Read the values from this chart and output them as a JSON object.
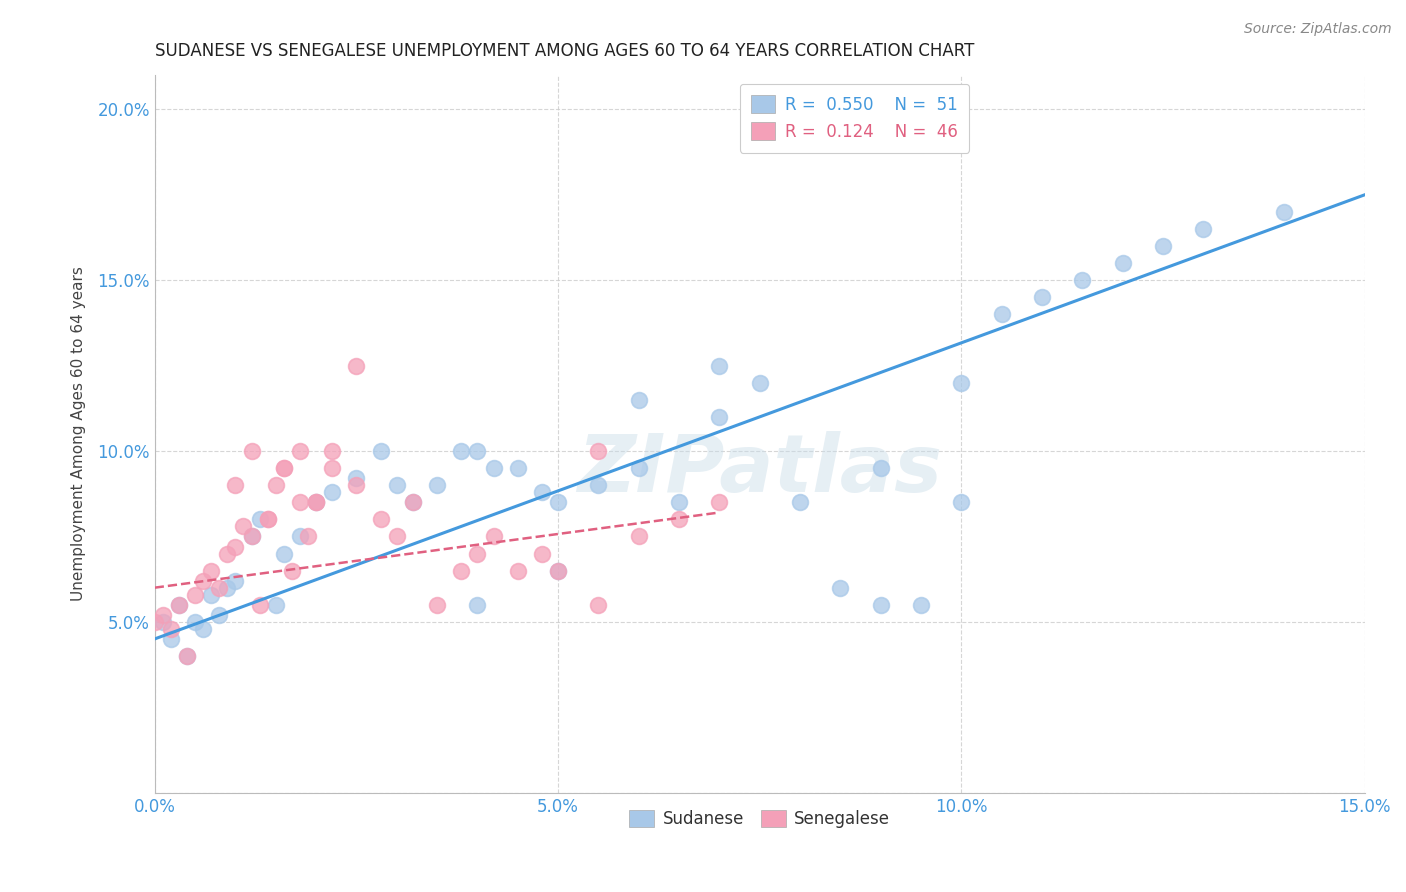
{
  "title": "SUDANESE VS SENEGALESE UNEMPLOYMENT AMONG AGES 60 TO 64 YEARS CORRELATION CHART",
  "source": "Source: ZipAtlas.com",
  "ylabel": "Unemployment Among Ages 60 to 64 years",
  "xlim": [
    0,
    0.15
  ],
  "ylim": [
    0,
    0.21
  ],
  "xticks": [
    0.0,
    0.05,
    0.1,
    0.15
  ],
  "xtick_labels": [
    "0.0%",
    "5.0%",
    "10.0%",
    "15.0%"
  ],
  "yticks": [
    0.0,
    0.05,
    0.1,
    0.15,
    0.2
  ],
  "ytick_labels": [
    "",
    "5.0%",
    "10.0%",
    "15.0%",
    "20.0%"
  ],
  "blue_color": "#a8c8e8",
  "pink_color": "#f4a0b8",
  "blue_line_color": "#4499dd",
  "pink_line_color": "#e06080",
  "axis_label_color": "#4499dd",
  "watermark": "ZIPatlas",
  "sudanese_x": [
    0.001,
    0.002,
    0.003,
    0.004,
    0.005,
    0.006,
    0.007,
    0.008,
    0.009,
    0.01,
    0.012,
    0.013,
    0.015,
    0.016,
    0.018,
    0.02,
    0.022,
    0.025,
    0.028,
    0.03,
    0.032,
    0.035,
    0.038,
    0.04,
    0.042,
    0.045,
    0.048,
    0.05,
    0.055,
    0.06,
    0.065,
    0.07,
    0.075,
    0.09,
    0.1,
    0.105,
    0.11,
    0.115,
    0.12,
    0.125,
    0.13,
    0.14,
    0.04,
    0.05,
    0.06,
    0.07,
    0.08,
    0.085,
    0.09,
    0.095,
    0.1
  ],
  "sudanese_y": [
    0.05,
    0.045,
    0.055,
    0.04,
    0.05,
    0.048,
    0.058,
    0.052,
    0.06,
    0.062,
    0.075,
    0.08,
    0.055,
    0.07,
    0.075,
    0.085,
    0.088,
    0.092,
    0.1,
    0.09,
    0.085,
    0.09,
    0.1,
    0.1,
    0.095,
    0.095,
    0.088,
    0.085,
    0.09,
    0.115,
    0.085,
    0.125,
    0.12,
    0.095,
    0.12,
    0.14,
    0.145,
    0.15,
    0.155,
    0.16,
    0.165,
    0.17,
    0.055,
    0.065,
    0.095,
    0.11,
    0.085,
    0.06,
    0.055,
    0.055,
    0.085
  ],
  "senegalese_x": [
    0.0,
    0.001,
    0.002,
    0.003,
    0.004,
    0.005,
    0.006,
    0.007,
    0.008,
    0.009,
    0.01,
    0.011,
    0.012,
    0.013,
    0.014,
    0.015,
    0.016,
    0.017,
    0.018,
    0.019,
    0.02,
    0.022,
    0.025,
    0.01,
    0.012,
    0.014,
    0.016,
    0.018,
    0.02,
    0.022,
    0.025,
    0.028,
    0.03,
    0.032,
    0.035,
    0.038,
    0.04,
    0.042,
    0.045,
    0.048,
    0.05,
    0.055,
    0.055,
    0.06,
    0.065,
    0.07
  ],
  "senegalese_y": [
    0.05,
    0.052,
    0.048,
    0.055,
    0.04,
    0.058,
    0.062,
    0.065,
    0.06,
    0.07,
    0.072,
    0.078,
    0.075,
    0.055,
    0.08,
    0.09,
    0.095,
    0.065,
    0.1,
    0.075,
    0.085,
    0.1,
    0.09,
    0.09,
    0.1,
    0.08,
    0.095,
    0.085,
    0.085,
    0.095,
    0.125,
    0.08,
    0.075,
    0.085,
    0.055,
    0.065,
    0.07,
    0.075,
    0.065,
    0.07,
    0.065,
    0.055,
    0.1,
    0.075,
    0.08,
    0.085
  ],
  "blue_trend_x": [
    0.0,
    0.15
  ],
  "blue_trend_y": [
    0.045,
    0.175
  ],
  "pink_trend_x": [
    0.0,
    0.07
  ],
  "pink_trend_y": [
    0.06,
    0.082
  ]
}
